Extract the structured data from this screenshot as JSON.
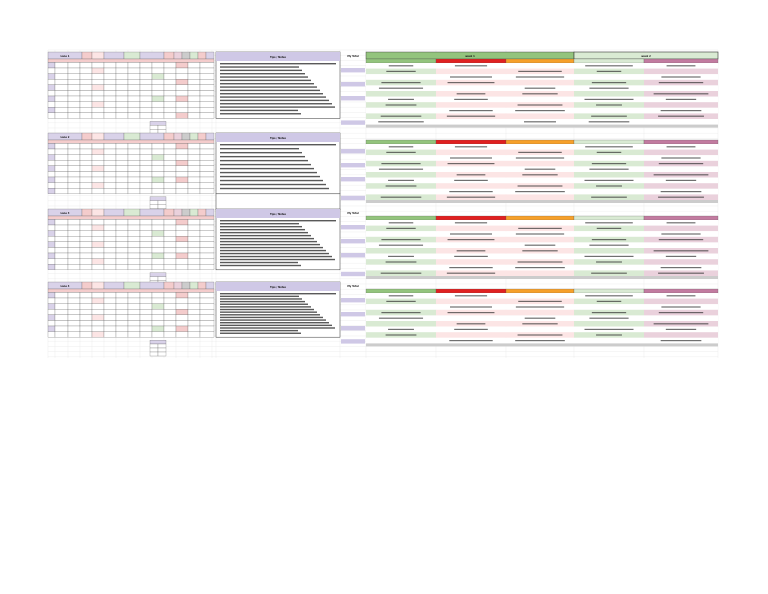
{
  "sheet": {
    "colors": {
      "header_lavender": "#d9d2e9",
      "panel_lavender": "#cfc8e6",
      "pink": "#f4cccc",
      "light_pink": "#fce5e5",
      "green": "#93c47d",
      "light_green": "#d9ead3",
      "red": "#e02020",
      "orange": "#f6a02a",
      "mauve": "#c27ba0",
      "light_mauve": "#ead1dc",
      "gray": "#cccccc",
      "dark": "#555555"
    },
    "blocks": [
      {
        "id": "block-1",
        "title_label": "Lane 1",
        "notes_header": "Tips / Notes",
        "side_label": "My Total",
        "status_header_left": "week 1",
        "status_header_right": "week 2"
      },
      {
        "id": "block-2",
        "title_label": "Lane 2",
        "notes_header": "Tips / Notes",
        "side_label": "",
        "status_header_left": "",
        "status_header_right": ""
      },
      {
        "id": "block-3",
        "title_label": "Lane 3",
        "notes_header": "Tips / Notes",
        "side_label": "My Total",
        "status_header_left": "",
        "status_header_right": ""
      },
      {
        "id": "block-4",
        "title_label": "Lane 4",
        "notes_header": "Tips / Notes",
        "side_label": "My Total",
        "status_header_left": "",
        "status_header_right": ""
      }
    ]
  }
}
